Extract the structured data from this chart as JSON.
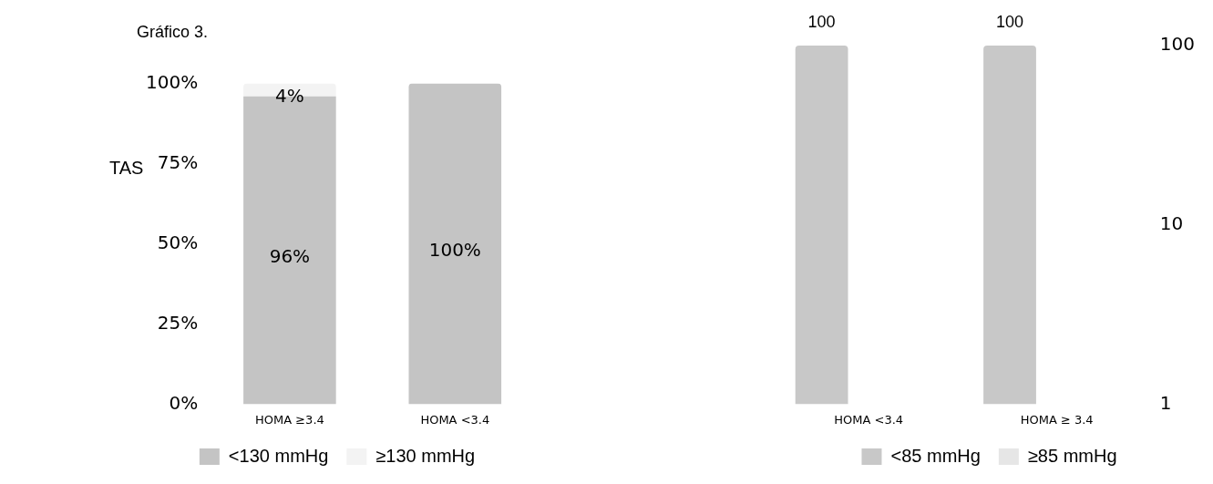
{
  "chart_data": [
    {
      "type": "bar",
      "title": "Gráfico 3.",
      "ylabel": "TAS",
      "categories": [
        "HOMA ≥3.4",
        "HOMA <3.4"
      ],
      "stacked": true,
      "legend": "bottom",
      "ylim": [
        0,
        100
      ],
      "yticks": [
        {
          "value": 0,
          "label": "0%"
        },
        {
          "value": 25,
          "label": "25%"
        },
        {
          "value": 50,
          "label": "50%"
        },
        {
          "value": 75,
          "label": "75%"
        },
        {
          "value": 100,
          "label": "100%"
        }
      ],
      "series": [
        {
          "name": "<130 mmHg",
          "color": "#c4c4c4",
          "values": [
            96,
            100
          ],
          "value_labels": [
            "96%",
            "100%"
          ]
        },
        {
          "name": "≥130 mmHg",
          "color": "#f3f3f3",
          "values": [
            4,
            0
          ],
          "value_labels": [
            "4%",
            null
          ]
        }
      ]
    },
    {
      "type": "bar",
      "categories": [
        "HOMA <3.4",
        "HOMA ≥ 3.4"
      ],
      "legend": "bottom",
      "log": "y2",
      "y2lim": [
        1,
        100
      ],
      "y2ticks": [
        1,
        10,
        100
      ],
      "data_labels": true,
      "series": [
        {
          "name": "<85 mmHg",
          "color": "#c8c8c8",
          "axis": "y2",
          "values": [
            100,
            100
          ]
        },
        {
          "name": "≥85 mmHg",
          "color": "#e6e6e6",
          "axis": "y2",
          "values": [
            null,
            null
          ]
        }
      ]
    }
  ]
}
